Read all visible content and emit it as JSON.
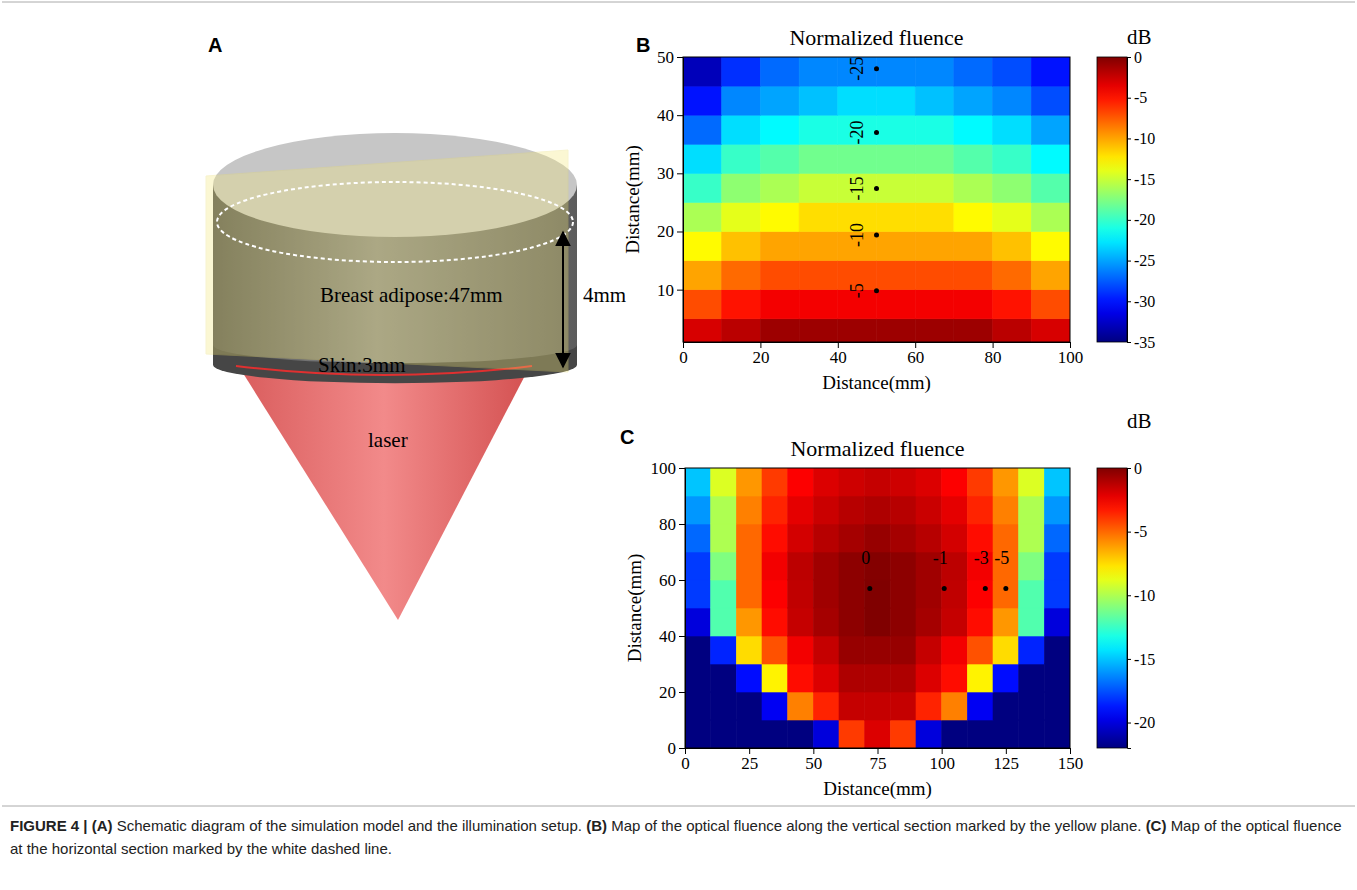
{
  "panel_a": {
    "letter": "A",
    "adipose": "Breast adipose:47mm",
    "height": "4mm",
    "skin": "Skin:3mm",
    "laser": "laser"
  },
  "chart_data": [
    {
      "type": "heatmap",
      "letter": "B",
      "title": "Normalized fluence",
      "x_label": "Distance(mm)",
      "y_label": "Distance(mm)",
      "xlim": [
        0,
        100
      ],
      "ylim": [
        1,
        50
      ],
      "xticks": [
        0,
        20,
        40,
        60,
        80,
        100
      ],
      "yticks": [
        10,
        20,
        30,
        40,
        50
      ],
      "x_bins": [
        0,
        10,
        20,
        30,
        40,
        50,
        60,
        70,
        80,
        90,
        100
      ],
      "y_bins": [
        0,
        5,
        10,
        15,
        20,
        25,
        30,
        35,
        40,
        45,
        50
      ],
      "z": [
        [
          -3,
          -2,
          -1,
          -1,
          -1,
          -1,
          -1,
          -1,
          -2,
          -3
        ],
        [
          -7,
          -5,
          -4,
          -4,
          -4,
          -4,
          -4,
          -4,
          -5,
          -7
        ],
        [
          -10,
          -8,
          -7,
          -7,
          -7,
          -7,
          -7,
          -7,
          -8,
          -10
        ],
        [
          -13,
          -11,
          -10,
          -10,
          -10,
          -10,
          -10,
          -10,
          -11,
          -13
        ],
        [
          -16,
          -14,
          -13,
          -12,
          -12,
          -12,
          -12,
          -13,
          -14,
          -16
        ],
        [
          -20,
          -17,
          -16,
          -15,
          -15,
          -15,
          -15,
          -16,
          -17,
          -19
        ],
        [
          -23,
          -20,
          -19,
          -18,
          -18,
          -18,
          -18,
          -19,
          -20,
          -22
        ],
        [
          -27,
          -23,
          -22,
          -21,
          -21,
          -21,
          -21,
          -22,
          -23,
          -25
        ],
        [
          -30,
          -26,
          -25,
          -24,
          -23,
          -23,
          -24,
          -25,
          -26,
          -28
        ],
        [
          -33,
          -29,
          -27,
          -26,
          -26,
          -26,
          -26,
          -27,
          -28,
          -30
        ]
      ],
      "colorbar": {
        "title": "dB",
        "range": [
          -35,
          0
        ],
        "ticks": [
          0,
          -5,
          -10,
          -15,
          -20,
          -25,
          -30,
          -35
        ]
      },
      "annotations": [
        {
          "x": 50,
          "y": 9.8,
          "level": -5
        },
        {
          "x": 50,
          "y": 19.4,
          "level": -10
        },
        {
          "x": 50,
          "y": 27.4,
          "level": -15
        },
        {
          "x": 50,
          "y": 37,
          "level": -20
        },
        {
          "x": 50,
          "y": 48,
          "level": -25
        }
      ]
    },
    {
      "type": "heatmap",
      "letter": "C",
      "title": "Normalized fluence",
      "x_label": "Distance(mm)",
      "y_label": "Distance(mm)",
      "xlim": [
        0,
        150
      ],
      "ylim": [
        0,
        100
      ],
      "xticks": [
        0,
        25,
        50,
        75,
        100,
        125,
        150
      ],
      "yticks": [
        0,
        20,
        40,
        60,
        80,
        100
      ],
      "x_bins": [
        0,
        10,
        20,
        30,
        40,
        50,
        60,
        70,
        80,
        90,
        100,
        110,
        120,
        130,
        140,
        150
      ],
      "y_bins": [
        0,
        10,
        20,
        30,
        40,
        50,
        60,
        70,
        80,
        90,
        100
      ],
      "z": [
        [
          -22,
          -22,
          -22,
          -22,
          -22,
          -20,
          -4,
          -2,
          -4,
          -20,
          -22,
          -22,
          -22,
          -22,
          -22
        ],
        [
          -22,
          -22,
          -22,
          -19.5,
          -5.5,
          -3.5,
          -1.5,
          -1.5,
          -1.5,
          -3.5,
          -5.5,
          -19.5,
          -22,
          -22,
          -22
        ],
        [
          -22,
          -22,
          -19,
          -8,
          -3,
          -2,
          -1,
          -1,
          -1,
          -2,
          -3,
          -8,
          -19,
          -22,
          -22
        ],
        [
          -22,
          -18.5,
          -7.5,
          -4.5,
          -2.5,
          -1.5,
          -0.5,
          -0.5,
          -0.5,
          -1.5,
          -2.5,
          -4.5,
          -7.5,
          -18.5,
          -22
        ],
        [
          -20,
          -12,
          -6,
          -3,
          -1.5,
          -0.8,
          -0.3,
          0,
          -0.3,
          -0.8,
          -1.5,
          -3,
          -6,
          -12,
          -20
        ],
        [
          -18,
          -12,
          -5,
          -2.7,
          -1.4,
          -0.7,
          -0.3,
          0,
          -0.3,
          -0.7,
          -1.4,
          -2.7,
          -5,
          -12,
          -18
        ],
        [
          -18,
          -11,
          -5,
          -2.5,
          -1.3,
          -0.7,
          -0.3,
          -0.1,
          -0.3,
          -0.7,
          -1.3,
          -2.5,
          -5,
          -11,
          -18
        ],
        [
          -17,
          -10,
          -5,
          -3,
          -1.8,
          -1.2,
          -0.8,
          -0.5,
          -0.8,
          -1.2,
          -1.8,
          -3,
          -5,
          -10,
          -17
        ],
        [
          -16,
          -10,
          -5.5,
          -3.5,
          -2.2,
          -1.6,
          -1.2,
          -1,
          -1.2,
          -1.6,
          -2.2,
          -3.5,
          -5.5,
          -10,
          -16
        ],
        [
          -15,
          -9,
          -6,
          -4,
          -2.7,
          -2,
          -1.7,
          -1.5,
          -1.7,
          -2,
          -2.7,
          -4,
          -6,
          -9,
          -15
        ]
      ],
      "colorbar": {
        "title": "dB",
        "range": [
          -22,
          0
        ],
        "ticks": [
          0,
          -5,
          -10,
          -15,
          -20
        ]
      },
      "annotations": [
        {
          "x": 72,
          "y": 57,
          "level": 0
        },
        {
          "x": 101,
          "y": 57,
          "level": -1
        },
        {
          "x": 117,
          "y": 57,
          "level": -3
        },
        {
          "x": 125,
          "y": 57,
          "level": -5
        }
      ]
    }
  ],
  "caption": {
    "label": "FIGURE 4 |",
    "items": [
      {
        "letter": "(A)",
        "text": "Schematic diagram of the simulation model and the illumination setup."
      },
      {
        "letter": "(B)",
        "text": "Map of the optical fluence along the vertical section marked by the yellow plane."
      },
      {
        "letter": "(C)",
        "text": "Map of the optical fluence at the horizontal section marked by the white dashed line."
      }
    ]
  }
}
